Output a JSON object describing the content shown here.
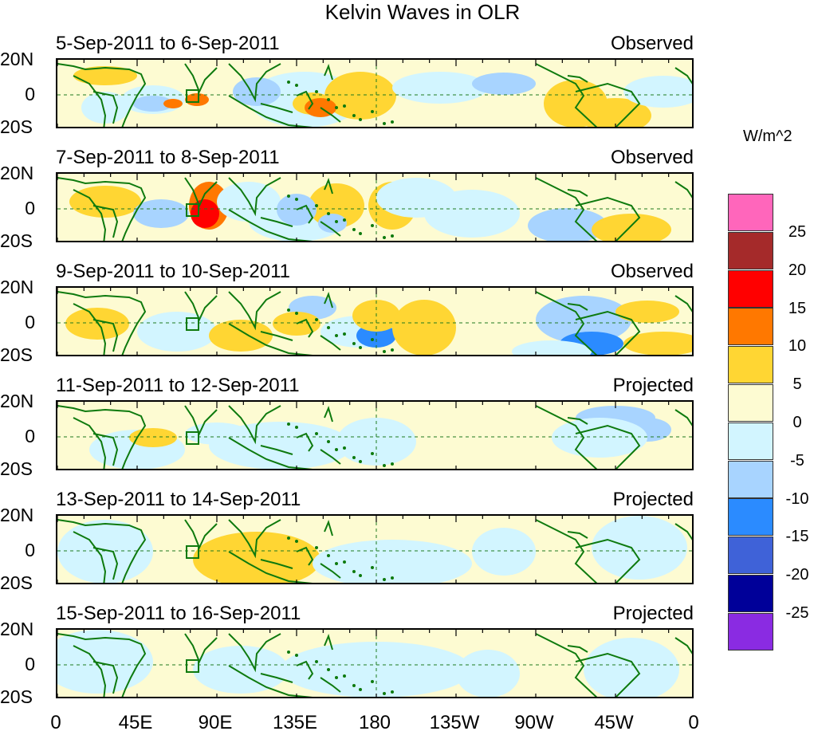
{
  "title": "Kelvin Waves in OLR",
  "panels": [
    {
      "date": "5-Sep-2011 to 6-Sep-2011",
      "type": "Observed"
    },
    {
      "date": "7-Sep-2011 to 8-Sep-2011",
      "type": "Observed"
    },
    {
      "date": "9-Sep-2011 to 10-Sep-2011",
      "type": "Observed"
    },
    {
      "date": "11-Sep-2011 to 12-Sep-2011",
      "type": "Projected"
    },
    {
      "date": "13-Sep-2011 to 14-Sep-2011",
      "type": "Projected"
    },
    {
      "date": "15-Sep-2011 to 16-Sep-2011",
      "type": "Projected"
    }
  ],
  "lat_labels": [
    "20N",
    "0",
    "20S"
  ],
  "lon_labels": [
    "0",
    "45E",
    "90E",
    "135E",
    "180",
    "135W",
    "90W",
    "45W",
    "0"
  ],
  "colorbar": {
    "units": "W/m^2",
    "labels": [
      "25",
      "20",
      "15",
      "10",
      "5",
      "0",
      "-5",
      "-10",
      "-15",
      "-20",
      "-25"
    ],
    "colors": [
      "#ff66bb",
      "#a52a2a",
      "#ff0000",
      "#ff7800",
      "#ffd633",
      "#fdfbd2",
      "#d2f5ff",
      "#a8d4ff",
      "#2b8bff",
      "#3f62d8",
      "#000099",
      "#8a2be2"
    ]
  }
}
